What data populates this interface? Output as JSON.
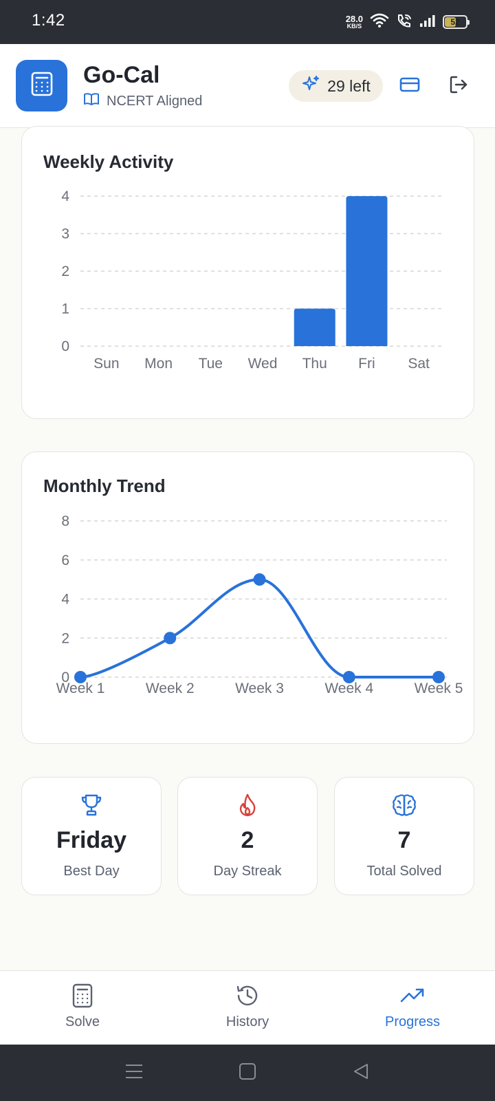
{
  "status_bar": {
    "time": "1:42",
    "net_speed_value": "28.0",
    "net_speed_unit": "KB/S",
    "battery": "52",
    "battery_level": 0.52
  },
  "header": {
    "title": "Go-Cal",
    "subtitle": "NCERT Aligned",
    "credits": "29 left",
    "icons": {
      "logo": "calculator-icon",
      "subtitle": "book-open-icon",
      "credits": "sparkles-icon",
      "plan": "credit-card-icon",
      "logout": "logout-icon"
    }
  },
  "weekly": {
    "title": "Weekly Activity",
    "chart_data": {
      "type": "bar",
      "categories": [
        "Sun",
        "Mon",
        "Tue",
        "Wed",
        "Thu",
        "Fri",
        "Sat"
      ],
      "values": [
        0,
        0,
        0,
        0,
        1,
        4,
        0
      ],
      "yticks": [
        "0",
        "1",
        "2",
        "3",
        "4"
      ],
      "ylim": [
        0,
        4
      ],
      "grid": true,
      "color": "#2872da"
    }
  },
  "monthly": {
    "title": "Monthly Trend",
    "chart_data": {
      "type": "line",
      "categories": [
        "Week 1",
        "Week 2",
        "Week 3",
        "Week 4",
        "Week 5"
      ],
      "values": [
        0,
        2,
        5,
        0,
        0
      ],
      "yticks": [
        "0",
        "2",
        "4",
        "6",
        "8"
      ],
      "ylim": [
        0,
        8
      ],
      "grid": true,
      "color": "#2872da"
    }
  },
  "stats": [
    {
      "icon": "trophy-icon",
      "value": "Friday",
      "label": "Best Day",
      "color": "#2872da"
    },
    {
      "icon": "flame-icon",
      "value": "2",
      "label": "Day Streak",
      "color": "#d9413a"
    },
    {
      "icon": "brain-icon",
      "value": "7",
      "label": "Total Solved",
      "color": "#2872da"
    }
  ],
  "bottom_nav": [
    {
      "icon": "calculator-icon",
      "label": "Solve",
      "active": false
    },
    {
      "icon": "history-icon",
      "label": "History",
      "active": false
    },
    {
      "icon": "trending-up-icon",
      "label": "Progress",
      "active": true
    }
  ],
  "colors": {
    "accent": "#2872da",
    "streak": "#d9413a",
    "status_bar": "#2b2e34"
  }
}
